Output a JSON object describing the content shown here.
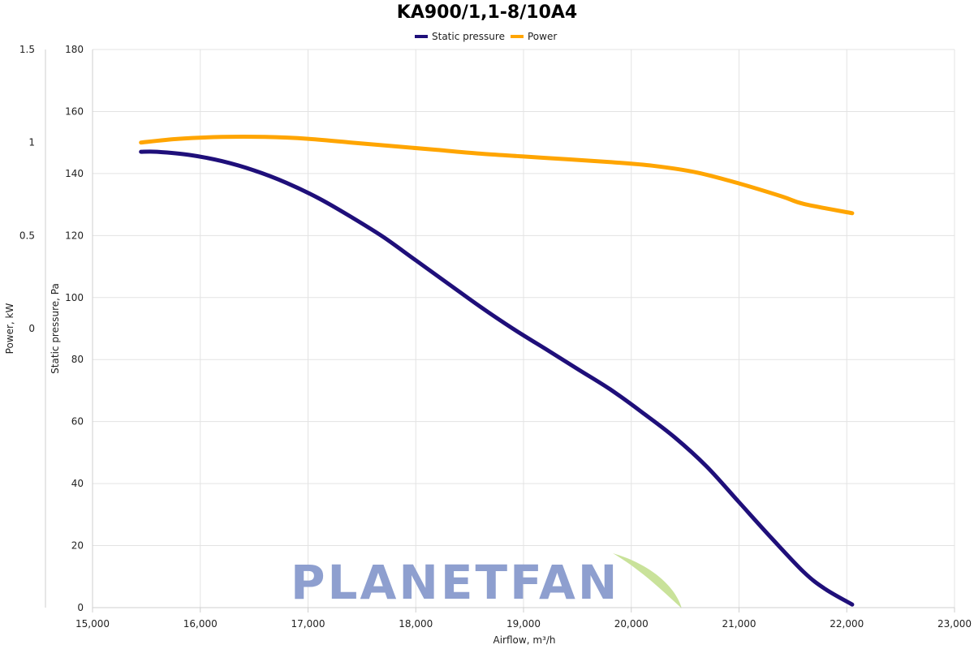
{
  "chart_data": {
    "type": "line",
    "title": "KA900/1,1-8/10A4",
    "xlabel": "Airflow, m³/h",
    "xlim": [
      15000,
      23000
    ],
    "x_ticks": [
      "15,000",
      "16,000",
      "17,000",
      "18,000",
      "19,000",
      "20,000",
      "21,000",
      "22,000",
      "23,000"
    ],
    "y_axes": [
      {
        "label": "Static pressure, Pa",
        "lim": [
          0,
          180
        ],
        "ticks": [
          "0",
          "20",
          "40",
          "60",
          "80",
          "100",
          "120",
          "140",
          "160",
          "180"
        ]
      },
      {
        "label": "Power, kW",
        "lim": [
          -1.5,
          1.5
        ],
        "ticks": [
          "0",
          "0.5",
          "1",
          "1.5"
        ]
      }
    ],
    "legend_position": "top-center",
    "grid": true,
    "series": [
      {
        "name": "Static pressure",
        "color": "#1f0f7a",
        "axis": 0,
        "x": [
          15450,
          15600,
          15900,
          16200,
          16500,
          16800,
          17100,
          17400,
          17700,
          18000,
          18300,
          18600,
          18900,
          19200,
          19500,
          19800,
          20100,
          20400,
          20700,
          21000,
          21300,
          21600,
          21800,
          22050
        ],
        "y": [
          147,
          147,
          146,
          144,
          141,
          137,
          132,
          126,
          119.5,
          112,
          104.5,
          97,
          90,
          83.5,
          77,
          70.5,
          63,
          55,
          45.5,
          34,
          22.5,
          11.5,
          6,
          1
        ]
      },
      {
        "name": "Power",
        "color": "#ffa500",
        "axis": 1,
        "x": [
          15450,
          15800,
          16200,
          16600,
          17000,
          17400,
          17800,
          18200,
          18600,
          19000,
          19400,
          19800,
          20200,
          20600,
          21000,
          21400,
          21600,
          22050
        ],
        "y": [
          1.0,
          1.02,
          1.03,
          1.03,
          1.02,
          1.0,
          0.98,
          0.96,
          0.94,
          0.925,
          0.91,
          0.895,
          0.875,
          0.84,
          0.78,
          0.71,
          0.67,
          0.62
        ]
      }
    ]
  },
  "watermark": {
    "text": "PLANETFAN",
    "color": "#8e9fcf",
    "leaf_color": "#c9e29a"
  }
}
